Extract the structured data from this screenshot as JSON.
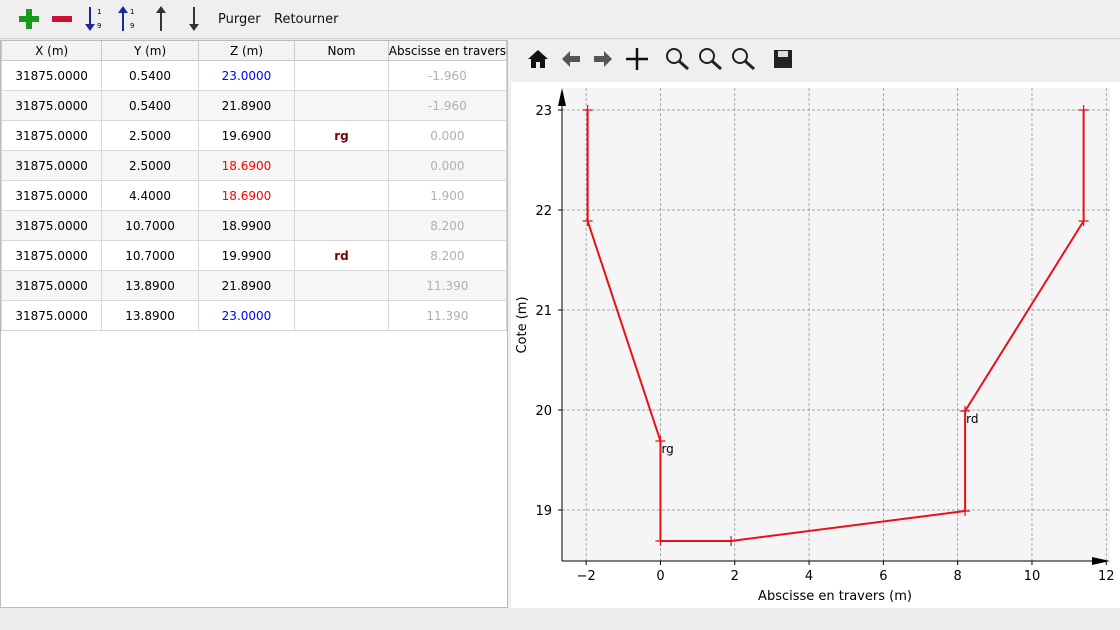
{
  "toolbar": {
    "buttons": [
      "Purger",
      "Retourner"
    ]
  },
  "table": {
    "headers": [
      "X (m)",
      "Y (m)",
      "Z (m)",
      "Nom",
      "Abscisse en travers"
    ],
    "rows": [
      {
        "cells": [
          "31875.0000",
          "0.5400",
          "23.0000",
          "",
          "-1.960"
        ],
        "z_color": "#0000ff"
      },
      {
        "cells": [
          "31875.0000",
          "0.5400",
          "21.8900",
          "",
          "-1.960"
        ]
      },
      {
        "cells": [
          "31875.0000",
          "2.5000",
          "19.6900",
          "rg",
          "0.000"
        ]
      },
      {
        "cells": [
          "31875.0000",
          "2.5000",
          "18.6900",
          "",
          "0.000"
        ],
        "z_color": "#ff0000"
      },
      {
        "cells": [
          "31875.0000",
          "4.4000",
          "18.6900",
          "",
          "1.900"
        ],
        "z_color": "#ff0000"
      },
      {
        "cells": [
          "31875.0000",
          "10.7000",
          "18.9900",
          "",
          "8.200"
        ]
      },
      {
        "cells": [
          "31875.0000",
          "10.7000",
          "19.9900",
          "rd",
          "8.200"
        ]
      },
      {
        "cells": [
          "31875.0000",
          "13.8900",
          "21.8900",
          "",
          "11.390"
        ]
      },
      {
        "cells": [
          "31875.0000",
          "13.8900",
          "23.0000",
          "",
          "11.390"
        ],
        "z_color": "#0000ff"
      }
    ]
  },
  "chart_data": {
    "type": "line",
    "xlabel": "Abscisse en travers (m)",
    "ylabel": "Cote (m)",
    "x": [
      -1.96,
      -1.96,
      0,
      0,
      1.9,
      8.2,
      8.2,
      11.39,
      11.39
    ],
    "values": [
      23,
      21.89,
      19.69,
      18.69,
      18.69,
      18.99,
      19.99,
      21.89,
      23
    ],
    "point_labels": [
      null,
      null,
      "rg",
      null,
      null,
      null,
      "rd",
      null,
      null
    ],
    "color": "#e8101a",
    "xlim": [
      -2.65,
      12.1
    ],
    "ylim": [
      18.49,
      23.22
    ],
    "xticks": [
      {
        "value": -2,
        "label": "−2"
      },
      0,
      2,
      4,
      6,
      8,
      10,
      12
    ],
    "yticks": [
      19,
      20,
      21,
      22,
      23
    ],
    "grid": true
  }
}
